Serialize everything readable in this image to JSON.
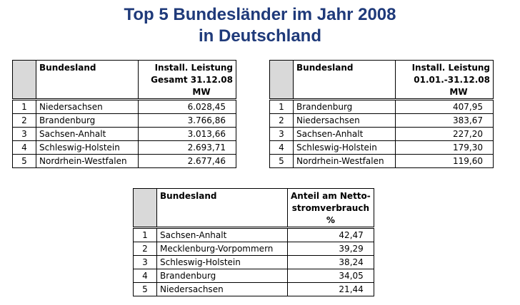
{
  "title_line1": "Top 5 Bundesländer im Jahr 2008",
  "title_line2": "in Deutschland",
  "tables": [
    {
      "col_name": "Bundesland",
      "col_value": [
        "Install. Leistung",
        "Gesamt 31.12.08",
        "MW"
      ],
      "rows": [
        {
          "rank": "1",
          "name": "Niedersachsen",
          "value": "6.028,45"
        },
        {
          "rank": "2",
          "name": "Brandenburg",
          "value": "3.766,86"
        },
        {
          "rank": "3",
          "name": "Sachsen-Anhalt",
          "value": "3.013,66"
        },
        {
          "rank": "4",
          "name": "Schleswig-Holstein",
          "value": "2.693,71"
        },
        {
          "rank": "5",
          "name": "Nordrhein-Westfalen",
          "value": "2.677,46"
        }
      ]
    },
    {
      "col_name": "Bundesland",
      "col_value": [
        "Install. Leistung",
        "01.01.-31.12.08",
        "MW"
      ],
      "rows": [
        {
          "rank": "1",
          "name": "Brandenburg",
          "value": "407,95"
        },
        {
          "rank": "2",
          "name": "Niedersachsen",
          "value": "383,67"
        },
        {
          "rank": "3",
          "name": "Sachsen-Anhalt",
          "value": "227,20"
        },
        {
          "rank": "4",
          "name": "Schleswig-Holstein",
          "value": "179,30"
        },
        {
          "rank": "5",
          "name": "Nordrhein-Westfalen",
          "value": "119,60"
        }
      ]
    },
    {
      "col_name": "Bundesland",
      "col_value": [
        "Anteil am Netto-",
        "stromverbrauch",
        "%"
      ],
      "rows": [
        {
          "rank": "1",
          "name": "Sachsen-Anhalt",
          "value": "42,47"
        },
        {
          "rank": "2",
          "name": "Mecklenburg-Vorpommern",
          "value": "39,29"
        },
        {
          "rank": "3",
          "name": "Schleswig-Holstein",
          "value": "38,24"
        },
        {
          "rank": "4",
          "name": "Brandenburg",
          "value": "34,05"
        },
        {
          "rank": "5",
          "name": "Niedersachsen",
          "value": "21,44"
        }
      ]
    }
  ]
}
